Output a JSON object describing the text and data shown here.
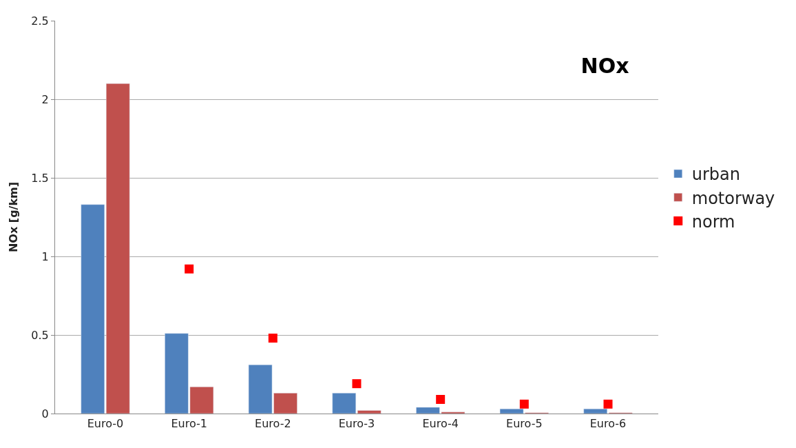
{
  "chart_data": {
    "type": "bar",
    "title": "NOx",
    "ylabel": "NOx [g/km]",
    "categories": [
      "Euro-0",
      "Euro-1",
      "Euro-2",
      "Euro-3",
      "Euro-4",
      "Euro-5",
      "Euro-6"
    ],
    "series": [
      {
        "name": "urban",
        "color": "#4f81bd",
        "values": [
          1.33,
          0.51,
          0.31,
          0.13,
          0.04,
          0.03,
          0.03
        ]
      },
      {
        "name": "motorway",
        "color": "#c0504d",
        "values": [
          2.1,
          0.17,
          0.13,
          0.02,
          0.01,
          0.005,
          0.005
        ]
      },
      {
        "name": "norm",
        "type": "scatter",
        "color": "#ff0000",
        "marker": "square",
        "values": [
          null,
          0.92,
          0.48,
          0.19,
          0.09,
          0.06,
          0.06
        ]
      }
    ],
    "ylim": [
      0,
      2.5
    ],
    "yticks": [
      0,
      0.5,
      1,
      1.5,
      2,
      2.5
    ],
    "grid": "y",
    "legend": "right"
  }
}
